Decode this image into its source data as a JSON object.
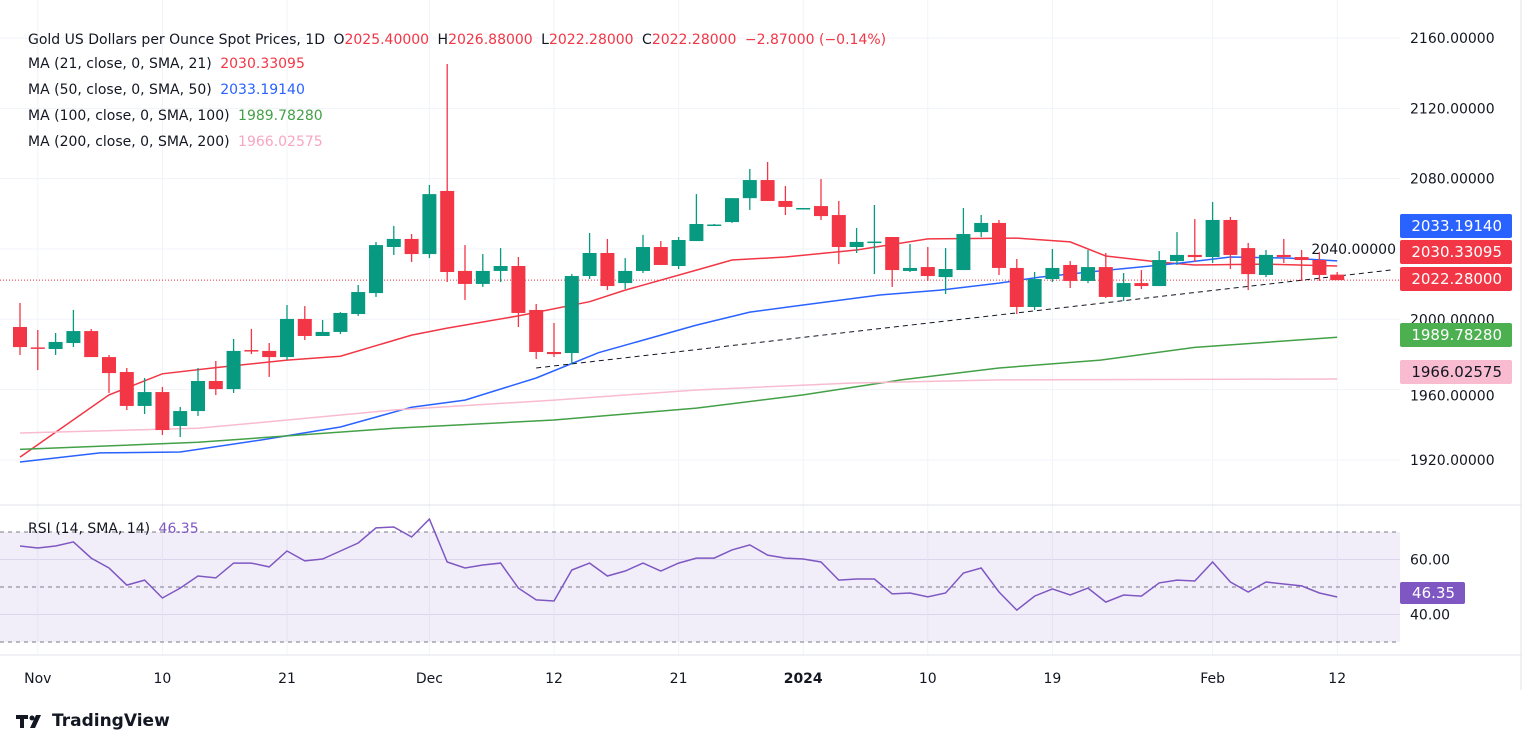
{
  "header": {
    "symbol": "Gold US Dollars per Ounce Spot Prices, 1D",
    "open_label": "O",
    "open": "2025.40000",
    "high_label": "H",
    "high": "2026.88000",
    "low_label": "L",
    "low": "2022.28000",
    "close_label": "C",
    "close": "2022.28000",
    "change": "−2.87000 (−0.14%)"
  },
  "indicators": [
    {
      "label": "MA (21, close, 0, SMA, 21)",
      "value": "2030.33095",
      "color": "#f23645"
    },
    {
      "label": "MA (50, close, 0, SMA, 50)",
      "value": "2033.19140",
      "color": "#2962ff"
    },
    {
      "label": "MA (100, close, 0, SMA, 100)",
      "value": "1989.78280",
      "color": "#43a047"
    },
    {
      "label": "MA (200, close, 0, SMA, 200)",
      "value": "1966.02575",
      "color": "#f8bbd0"
    }
  ],
  "rsi_legend": {
    "label": "RSI (14, SMA, 14)",
    "value": "46.35",
    "color": "#7e57c2"
  },
  "price_tags": [
    {
      "value": "2033.19140",
      "color": "#2962ff",
      "text_color": "#ffffff"
    },
    {
      "value": "2030.33095",
      "color": "#f23645",
      "text_color": "#ffffff"
    },
    {
      "value": "2022.28000",
      "color": "#f23645",
      "text_color": "#ffffff"
    },
    {
      "value": "1989.78280",
      "color": "#4caf50",
      "text_color": "#ffffff"
    },
    {
      "value": "1966.02575",
      "color": "#f8bbd0",
      "text_color": "#131722"
    },
    {
      "value": "46.35",
      "color": "#7e57c2",
      "text_color": "#ffffff"
    }
  ],
  "branding": {
    "name": "TradingView"
  },
  "chart_data": [
    {
      "type": "candlestick",
      "title": "Gold US Dollars per Ounce Spot Prices, 1D",
      "ylim": [
        1900,
        2170
      ],
      "y_ticks": [
        "2160.00000",
        "2120.00000",
        "2080.00000",
        "2040.00000",
        "2000.00000",
        "1960.00000",
        "1920.00000"
      ],
      "y_tick_values": [
        2160,
        2120,
        2080,
        2040,
        2000,
        1960,
        1920
      ],
      "x_ticks": [
        {
          "label": "Nov",
          "bar": 1
        },
        {
          "label": "10",
          "bar": 8
        },
        {
          "label": "21",
          "bar": 15
        },
        {
          "label": "Dec",
          "bar": 23
        },
        {
          "label": "12",
          "bar": 30
        },
        {
          "label": "21",
          "bar": 37
        },
        {
          "label": "2024",
          "bar": 44,
          "bold": true
        },
        {
          "label": "10",
          "bar": 51
        },
        {
          "label": "19",
          "bar": 58
        },
        {
          "label": "Feb",
          "bar": 67
        },
        {
          "label": "12",
          "bar": 74
        }
      ],
      "up_color": "#089981",
      "down_color": "#f23645",
      "ohlc": [
        [
          1995.6,
          2009.3,
          1979.7,
          1984.2
        ],
        [
          1984.0,
          1993.9,
          1971.1,
          1983.4
        ],
        [
          1983.1,
          1992.2,
          1979.7,
          1987.1
        ],
        [
          1986.5,
          2005.3,
          1984.2,
          1993.3
        ],
        [
          1993.3,
          1994.5,
          1978.5,
          1978.5
        ],
        [
          1978.5,
          1979.7,
          1958.1,
          1969.4
        ],
        [
          1970.0,
          1972.3,
          1948.4,
          1950.7
        ],
        [
          1950.7,
          1966.6,
          1946.1,
          1958.6
        ],
        [
          1958.6,
          1961.5,
          1934.2,
          1937.0
        ],
        [
          1939.3,
          1950.1,
          1933.0,
          1947.8
        ],
        [
          1947.8,
          1972.3,
          1945.0,
          1964.9
        ],
        [
          1964.9,
          1976.3,
          1956.9,
          1960.3
        ],
        [
          1960.3,
          1988.8,
          1958.1,
          1982.0
        ],
        [
          1982.5,
          1994.5,
          1980.2,
          1981.7
        ],
        [
          1982.0,
          1986.5,
          1967.2,
          1978.5
        ],
        [
          1978.5,
          2008.1,
          1976.8,
          2000.2
        ],
        [
          2000.2,
          2007.5,
          1988.2,
          1990.5
        ],
        [
          1990.5,
          1999.6,
          1990.5,
          1992.8
        ],
        [
          1992.8,
          2004.1,
          1991.6,
          2003.6
        ],
        [
          2003.0,
          2019.5,
          2001.9,
          2015.5
        ],
        [
          2014.9,
          2044.0,
          2012.7,
          2042.2
        ],
        [
          2041.1,
          2053.1,
          2036.6,
          2045.7
        ],
        [
          2045.7,
          2048.5,
          2032.6,
          2037.1
        ],
        [
          2037.1,
          2076.4,
          2034.8,
          2071.2
        ],
        [
          2073.0,
          2145.2,
          2021.2,
          2026.9
        ],
        [
          2027.5,
          2042.2,
          2011.0,
          2020.1
        ],
        [
          2020.1,
          2037.1,
          2018.4,
          2027.5
        ],
        [
          2027.5,
          2040.5,
          2021.2,
          2030.3
        ],
        [
          2030.3,
          2035.4,
          1995.6,
          2003.6
        ],
        [
          2005.3,
          2008.7,
          1977.4,
          1981.4
        ],
        [
          1981.4,
          1997.9,
          1978.5,
          1980.2
        ],
        [
          1980.8,
          2025.7,
          1974.6,
          2024.6
        ],
        [
          2024.6,
          2049.1,
          2022.9,
          2037.7
        ],
        [
          2037.7,
          2045.7,
          2016.6,
          2018.9
        ],
        [
          2020.6,
          2034.8,
          2017.2,
          2027.5
        ],
        [
          2027.5,
          2048.0,
          2026.3,
          2041.1
        ],
        [
          2041.1,
          2044.5,
          2030.9,
          2030.9
        ],
        [
          2030.3,
          2046.8,
          2028.6,
          2045.1
        ],
        [
          2044.5,
          2071.2,
          2044.5,
          2054.2
        ],
        [
          2053.6,
          2054.2,
          2053.3,
          2053.9
        ],
        [
          2055.3,
          2068.9,
          2054.8,
          2068.9
        ],
        [
          2068.9,
          2085.5,
          2062.2,
          2079.2
        ],
        [
          2079.2,
          2089.5,
          2067.3,
          2067.3
        ],
        [
          2067.3,
          2075.8,
          2059.3,
          2063.9
        ],
        [
          2063.0,
          2063.3,
          2062.7,
          2063.3
        ],
        [
          2064.4,
          2079.8,
          2056.5,
          2058.7
        ],
        [
          2059.3,
          2067.3,
          2031.4,
          2041.1
        ],
        [
          2041.1,
          2051.9,
          2037.7,
          2044.0
        ],
        [
          2043.7,
          2065.0,
          2025.7,
          2044.2
        ],
        [
          2046.8,
          2046.8,
          2018.4,
          2028.0
        ],
        [
          2027.5,
          2042.8,
          2026.9,
          2029.2
        ],
        [
          2029.7,
          2041.1,
          2021.8,
          2024.6
        ],
        [
          2024.0,
          2040.5,
          2014.4,
          2028.6
        ],
        [
          2028.0,
          2063.3,
          2028.0,
          2048.5
        ],
        [
          2049.6,
          2059.3,
          2046.8,
          2054.8
        ],
        [
          2054.8,
          2056.5,
          2025.2,
          2029.2
        ],
        [
          2029.2,
          2034.3,
          2003.0,
          2007.0
        ],
        [
          2007.0,
          2026.9,
          2005.3,
          2022.9
        ],
        [
          2022.9,
          2040.0,
          2021.2,
          2029.2
        ],
        [
          2030.9,
          2033.1,
          2017.8,
          2021.8
        ],
        [
          2021.8,
          2039.4,
          2020.6,
          2029.7
        ],
        [
          2029.7,
          2037.7,
          2012.1,
          2012.7
        ],
        [
          2012.7,
          2026.3,
          2010.4,
          2020.6
        ],
        [
          2020.6,
          2028.0,
          2017.2,
          2018.9
        ],
        [
          2018.9,
          2038.8,
          2018.9,
          2033.7
        ],
        [
          2033.1,
          2049.6,
          2030.9,
          2036.6
        ],
        [
          2036.6,
          2057.0,
          2032.6,
          2035.4
        ],
        [
          2035.4,
          2066.7,
          2032.0,
          2056.5
        ],
        [
          2056.5,
          2058.2,
          2028.6,
          2036.6
        ],
        [
          2040.5,
          2043.4,
          2016.6,
          2025.7
        ],
        [
          2025.2,
          2039.4,
          2024.0,
          2036.6
        ],
        [
          2036.6,
          2045.7,
          2032.0,
          2035.4
        ],
        [
          2035.4,
          2039.4,
          2021.8,
          2033.7
        ],
        [
          2033.7,
          2038.3,
          2021.8,
          2025.2
        ],
        [
          2025.4,
          2026.88,
          2022.28,
          2022.28
        ]
      ],
      "last_price": 2022.28,
      "moving_averages": [
        {
          "name": "MA (21, close, 0, SMA, 21)",
          "color": "#f23645",
          "points": [
            [
              0,
              1921.6
            ],
            [
              5,
              1957
            ],
            [
              8,
              1969
            ],
            [
              11,
              1972.5
            ],
            [
              15,
              1976.8
            ],
            [
              18,
              1979
            ],
            [
              22,
              1991
            ],
            [
              24,
              1995
            ],
            [
              28,
              2001.9
            ],
            [
              32,
              2010
            ],
            [
              34,
              2016.6
            ],
            [
              38,
              2028
            ],
            [
              40,
              2033.7
            ],
            [
              43,
              2035.4
            ],
            [
              47,
              2039.4
            ],
            [
              51,
              2045.7
            ],
            [
              56,
              2046.2
            ],
            [
              59,
              2044
            ],
            [
              61,
              2036
            ],
            [
              64,
              2032.5
            ],
            [
              66,
              2030.9
            ],
            [
              70,
              2031.4
            ],
            [
              74,
              2030.33
            ]
          ]
        },
        {
          "name": "MA (50, close, 0, SMA, 50)",
          "color": "#2962ff",
          "points": [
            [
              0,
              1918.8
            ],
            [
              4.5,
              1924
            ],
            [
              9,
              1924.5
            ],
            [
              13.5,
              1931.3
            ],
            [
              18,
              1938.7
            ],
            [
              22,
              1950
            ],
            [
              25,
              1954
            ],
            [
              29,
              1966.6
            ],
            [
              32.5,
              1981
            ],
            [
              38,
              1996.7
            ],
            [
              41,
              2004.1
            ],
            [
              44,
              2008.1
            ],
            [
              48.3,
              2013.8
            ],
            [
              51.7,
              2016.6
            ],
            [
              55,
              2020.6
            ],
            [
              57.3,
              2024
            ],
            [
              60.7,
              2027.5
            ],
            [
              65.2,
              2032
            ],
            [
              68,
              2035.4
            ],
            [
              71.3,
              2034.8
            ],
            [
              74,
              2033.19
            ]
          ]
        },
        {
          "name": "MA (100, close, 0, SMA, 100)",
          "color": "#43a047",
          "points": [
            [
              0,
              1926
            ],
            [
              10,
              1930
            ],
            [
              21,
              1938
            ],
            [
              30,
              1942.7
            ],
            [
              38,
              1949.5
            ],
            [
              44,
              1957
            ],
            [
              49.5,
              1965.5
            ],
            [
              55,
              1972.3
            ],
            [
              60.7,
              1976.8
            ],
            [
              66,
              1984
            ],
            [
              74,
              1989.78
            ]
          ]
        },
        {
          "name": "MA (200, close, 0, SMA, 200)",
          "color": "#f8bbd0",
          "points": [
            [
              0,
              1935.3
            ],
            [
              10,
              1938
            ],
            [
              21,
              1948.4
            ],
            [
              30,
              1954
            ],
            [
              38,
              1959.8
            ],
            [
              46.6,
              1963.7
            ],
            [
              55,
              1965.5
            ],
            [
              66,
              1965.8
            ],
            [
              74,
              1966.03
            ]
          ]
        }
      ],
      "trendline": {
        "style": "dashed",
        "color": "#131722",
        "from": [
          29,
          1972.3
        ],
        "to": [
          77,
          2028
        ]
      }
    },
    {
      "type": "line",
      "title": "RSI (14, SMA, 14)",
      "ylim": [
        25,
        80
      ],
      "y_ticks": [
        "60.00",
        "40.00"
      ],
      "y_tick_values": [
        60,
        40
      ],
      "bands": [
        70,
        50,
        30
      ],
      "color": "#7e57c2",
      "values": [
        64.9,
        64.2,
        64.9,
        66.4,
        60.5,
        56.9,
        50.7,
        52.5,
        46.0,
        49.6,
        54.0,
        53.3,
        58.7,
        58.7,
        57.3,
        63.1,
        59.5,
        60.2,
        63.1,
        66.0,
        71.5,
        71.8,
        68.2,
        74.7,
        59.1,
        56.9,
        58.0,
        58.7,
        49.6,
        45.3,
        44.9,
        56.2,
        58.7,
        54.0,
        55.8,
        58.7,
        55.8,
        58.7,
        60.5,
        60.5,
        63.5,
        65.3,
        61.6,
        60.5,
        60.2,
        59.1,
        52.5,
        52.9,
        52.9,
        47.5,
        47.8,
        46.4,
        47.8,
        55.1,
        56.9,
        48.2,
        41.6,
        46.7,
        49.3,
        47.1,
        49.6,
        44.5,
        47.1,
        46.7,
        51.5,
        52.5,
        52.2,
        59.1,
        51.8,
        48.2,
        51.8,
        51.1,
        50.4,
        47.8,
        46.35
      ]
    }
  ]
}
